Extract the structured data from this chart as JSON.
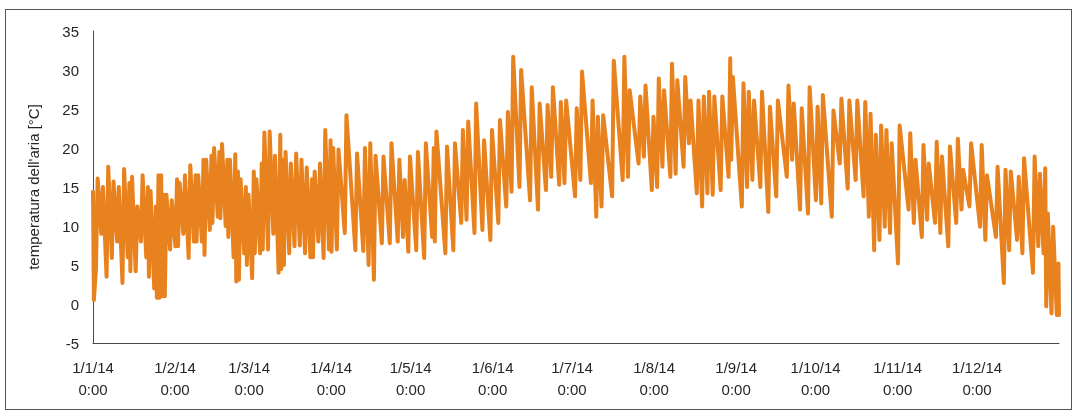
{
  "chart_data": {
    "type": "line",
    "ylabel": "temperatura dell'aria [°C]",
    "color": "#e8821e",
    "marker": "none",
    "line_style": "solid",
    "xlim": [
      "2014-01-01T00:00",
      "2014-12-31T23:00"
    ],
    "ylim": [
      -5,
      35
    ],
    "xticks": [
      {
        "value": "2014-01-01",
        "label": "1/1/14 0:00"
      },
      {
        "value": "2014-02-01",
        "label": "1/2/14 0:00"
      },
      {
        "value": "2014-03-01",
        "label": "1/3/14 0:00"
      },
      {
        "value": "2014-04-01",
        "label": "1/4/14 0:00"
      },
      {
        "value": "2014-05-01",
        "label": "1/5/14 0:00"
      },
      {
        "value": "2014-06-01",
        "label": "1/6/14 0:00"
      },
      {
        "value": "2014-07-01",
        "label": "1/7/14 0:00"
      },
      {
        "value": "2014-08-01",
        "label": "1/8/14 0:00"
      },
      {
        "value": "2014-09-01",
        "label": "1/9/14 0:00"
      },
      {
        "value": "2014-10-01",
        "label": "1/10/14 0:00"
      },
      {
        "value": "2014-11-01",
        "label": "1/11/14 0:00"
      },
      {
        "value": "2014-12-01",
        "label": "1/12/14 0:00"
      }
    ],
    "yticks": [
      -5,
      0,
      5,
      10,
      15,
      20,
      25,
      30,
      35
    ],
    "x": [
      "2014-01-01T00:00",
      "2014-01-01T08:00",
      "2014-01-02T03:00",
      "2014-01-02T18:00",
      "2014-01-04T03:00",
      "2014-01-04T18:00",
      "2014-01-06T03:00",
      "2014-01-06T18:00",
      "2014-01-08T03:00",
      "2014-01-08T18:00",
      "2014-01-10T03:00",
      "2014-01-10T18:00",
      "2014-01-12T03:00",
      "2014-01-12T18:00",
      "2014-01-14T03:00",
      "2014-01-14T18:00",
      "2014-01-15T03:00",
      "2014-01-15T18:00",
      "2014-01-17T03:00",
      "2014-01-17T18:00",
      "2014-01-19T03:00",
      "2014-01-19T18:00",
      "2014-01-21T03:00",
      "2014-01-21T18:00",
      "2014-01-22T03:00",
      "2014-01-22T18:00",
      "2014-01-24T03:00",
      "2014-01-24T18:00",
      "2014-01-25T03:00",
      "2014-01-25T18:00",
      "2014-01-26T03:00",
      "2014-01-26T18:00",
      "2014-01-27T03:00",
      "2014-01-27T18:00",
      "2014-01-28T03:00",
      "2014-01-28T18:00",
      "2014-01-30T03:00",
      "2014-01-30T18:00",
      "2014-02-01T03:00",
      "2014-02-01T18:00",
      "2014-02-02T03:00",
      "2014-02-02T18:00",
      "2014-02-04T03:00",
      "2014-02-04T18:00",
      "2014-02-06T03:00",
      "2014-02-06T18:00",
      "2014-02-08T03:00",
      "2014-02-08T18:00",
      "2014-02-09T03:00",
      "2014-02-09T18:00",
      "2014-02-11T03:00",
      "2014-02-11T18:00",
      "2014-02-12T03:00",
      "2014-02-12T18:00",
      "2014-02-14T03:00",
      "2014-02-14T18:00",
      "2014-02-15T03:00",
      "2014-02-15T18:00",
      "2014-02-17T03:00",
      "2014-02-17T18:00",
      "2014-02-18T03:00",
      "2014-02-18T18:00",
      "2014-02-20T03:00",
      "2014-02-20T18:00",
      "2014-02-21T03:00",
      "2014-02-21T18:00",
      "2014-02-23T03:00",
      "2014-02-23T18:00",
      "2014-02-24T03:00",
      "2014-02-24T18:00",
      "2014-02-25T03:00",
      "2014-02-25T18:00",
      "2014-02-27T03:00",
      "2014-02-27T18:00",
      "2014-02-28T03:00",
      "2014-02-28T18:00",
      "2014-03-02T03:00",
      "2014-03-02T18:00",
      "2014-03-03T03:00",
      "2014-03-03T18:00",
      "2014-03-05T03:00",
      "2014-03-05T18:00",
      "2014-03-06T03:00",
      "2014-03-06T18:00",
      "2014-03-08T03:00",
      "2014-03-08T18:00",
      "2014-03-10T03:00",
      "2014-03-10T18:00",
      "2014-03-12T03:00",
      "2014-03-12T18:00",
      "2014-03-13T03:00",
      "2014-03-13T18:00",
      "2014-03-14T03:00",
      "2014-03-14T18:00",
      "2014-03-16T03:00",
      "2014-03-16T18:00",
      "2014-03-18T03:00",
      "2014-03-18T18:00",
      "2014-03-20T03:00",
      "2014-03-20T18:00",
      "2014-03-22T03:00",
      "2014-03-22T18:00",
      "2014-03-24T03:00",
      "2014-03-24T18:00",
      "2014-03-25T03:00",
      "2014-03-25T18:00",
      "2014-03-27T03:00",
      "2014-03-27T18:00",
      "2014-03-29T03:00",
      "2014-03-29T18:00",
      "2014-03-31T03:00",
      "2014-03-31T18:00",
      "2014-04-01T03:00",
      "2014-04-01T18:00",
      "2014-04-03T03:00",
      "2014-04-03T18:00",
      "2014-04-06T03:00",
      "2014-04-06T18:00",
      "2014-04-10T03:00",
      "2014-04-10T18:00",
      "2014-04-13T03:00",
      "2014-04-13T18:00",
      "2014-04-15T03:00",
      "2014-04-15T18:00",
      "2014-04-17T03:00",
      "2014-04-17T18:00",
      "2014-04-20T03:00",
      "2014-04-20T18:00",
      "2014-04-23T03:00",
      "2014-04-23T18:00",
      "2014-04-26T03:00",
      "2014-04-26T18:00",
      "2014-04-28T03:00",
      "2014-04-28T18:00",
      "2014-04-30T03:00",
      "2014-04-30T18:00",
      "2014-05-03T03:00",
      "2014-05-03T18:00",
      "2014-05-06T03:00",
      "2014-05-06T18:00",
      "2014-05-09T03:00",
      "2014-05-09T18:00",
      "2014-05-10T03:00",
      "2014-05-10T18:00",
      "2014-05-14T03:00",
      "2014-05-14T18:00",
      "2014-05-17T03:00",
      "2014-05-17T18:00",
      "2014-05-20T03:00",
      "2014-05-20T18:00",
      "2014-05-22T03:00",
      "2014-05-22T18:00",
      "2014-05-25T03:00",
      "2014-05-25T18:00",
      "2014-05-28T03:00",
      "2014-05-28T18:00",
      "2014-05-31T03:00",
      "2014-05-31T18:00",
      "2014-06-03T03:00",
      "2014-06-03T18:00",
      "2014-06-06T03:00",
      "2014-06-06T18:00",
      "2014-06-08T03:00",
      "2014-06-08T18:00",
      "2014-06-11T03:00",
      "2014-06-11T18:00",
      "2014-06-15T03:00",
      "2014-06-15T18:00",
      "2014-06-18T03:00",
      "2014-06-18T18:00",
      "2014-06-21T03:00",
      "2014-06-21T18:00",
      "2014-06-23T03:00",
      "2014-06-23T18:00",
      "2014-06-26T03:00",
      "2014-06-26T18:00",
      "2014-06-28T03:00",
      "2014-06-28T18:00",
      "2014-07-02T03:00",
      "2014-07-02T18:00",
      "2014-07-04T03:00",
      "2014-07-04T18:00",
      "2014-07-08T03:00",
      "2014-07-08T18:00",
      "2014-07-10T03:00",
      "2014-07-10T18:00",
      "2014-07-12T03:00",
      "2014-07-12T18:00",
      "2014-07-16T03:00",
      "2014-07-16T18:00",
      "2014-07-20T03:00",
      "2014-07-20T18:00",
      "2014-07-22T03:00",
      "2014-07-22T18:00",
      "2014-07-26T03:00",
      "2014-07-26T18:00",
      "2014-07-28T03:00",
      "2014-07-28T18:00",
      "2014-07-31T03:00",
      "2014-07-31T18:00",
      "2014-08-02T03:00",
      "2014-08-02T18:00",
      "2014-08-04T03:00",
      "2014-08-04T18:00",
      "2014-08-07T03:00",
      "2014-08-07T18:00",
      "2014-08-09T03:00",
      "2014-08-09T18:00",
      "2014-08-12T03:00",
      "2014-08-12T18:00",
      "2014-08-14T03:00",
      "2014-08-14T18:00",
      "2014-08-17T03:00",
      "2014-08-17T18:00",
      "2014-08-19T03:00",
      "2014-08-19T18:00",
      "2014-08-21T03:00",
      "2014-08-21T18:00",
      "2014-08-23T03:00",
      "2014-08-23T18:00",
      "2014-08-26T03:00",
      "2014-08-26T18:00",
      "2014-08-29T03:00",
      "2014-08-29T18:00",
      "2014-08-30T03:00",
      "2014-08-30T18:00",
      "2014-09-03T03:00",
      "2014-09-03T18:00",
      "2014-09-05T03:00",
      "2014-09-05T18:00",
      "2014-09-07T03:00",
      "2014-09-07T18:00",
      "2014-09-10T03:00",
      "2014-09-10T18:00",
      "2014-09-13T03:00",
      "2014-09-13T18:00",
      "2014-09-16T03:00",
      "2014-09-16T18:00",
      "2014-09-20T03:00",
      "2014-09-20T18:00",
      "2014-09-22T03:00",
      "2014-09-22T18:00",
      "2014-09-25T03:00",
      "2014-09-25T18:00",
      "2014-09-28T03:00",
      "2014-09-28T18:00",
      "2014-10-01T03:00",
      "2014-10-01T18:00",
      "2014-10-03T03:00",
      "2014-10-03T18:00",
      "2014-10-07T03:00",
      "2014-10-07T18:00",
      "2014-10-10T03:00",
      "2014-10-10T18:00",
      "2014-10-13T03:00",
      "2014-10-13T18:00",
      "2014-10-16T03:00",
      "2014-10-16T18:00",
      "2014-10-19T03:00",
      "2014-10-19T18:00",
      "2014-10-21T03:00",
      "2014-10-21T18:00",
      "2014-10-23T03:00",
      "2014-10-23T18:00",
      "2014-10-25T03:00",
      "2014-10-25T18:00",
      "2014-10-27T03:00",
      "2014-10-27T18:00",
      "2014-10-29T03:00",
      "2014-10-29T18:00",
      "2014-11-01T03:00",
      "2014-11-01T18:00",
      "2014-11-05T03:00",
      "2014-11-05T18:00",
      "2014-11-07T03:00",
      "2014-11-07T18:00",
      "2014-11-10T03:00",
      "2014-11-10T18:00",
      "2014-11-12T03:00",
      "2014-11-12T18:00",
      "2014-11-15T03:00",
      "2014-11-15T18:00",
      "2014-11-17T03:00",
      "2014-11-17T18:00",
      "2014-11-20T03:00",
      "2014-11-20T18:00",
      "2014-11-23T03:00",
      "2014-11-23T18:00",
      "2014-11-25T03:00",
      "2014-11-25T18:00",
      "2014-11-28T03:00",
      "2014-11-28T18:00",
      "2014-12-02T03:00",
      "2014-12-02T18:00",
      "2014-12-04T03:00",
      "2014-12-04T18:00",
      "2014-12-08T03:00",
      "2014-12-08T18:00",
      "2014-12-11T03:00",
      "2014-12-11T18:00",
      "2014-12-13T03:00",
      "2014-12-13T18:00",
      "2014-12-16T03:00",
      "2014-12-16T18:00",
      "2014-12-18T03:00",
      "2014-12-18T18:00",
      "2014-12-22T03:00",
      "2014-12-22T18:00",
      "2014-12-24T03:00",
      "2014-12-24T18:00",
      "2014-12-26T03:00",
      "2014-12-26T18:00",
      "2014-12-27T03:00",
      "2014-12-27T18:00",
      "2014-12-29T03:00",
      "2014-12-29T18:00",
      "2014-12-31T03:00",
      "2014-12-31T18:00",
      "2014-12-31T23:00"
    ],
    "values": [
      14.4,
      0.5,
      4.6,
      16.1,
      9,
      15,
      3.5,
      17.6,
      5.9,
      15.7,
      8,
      15,
      2.7,
      17.3,
      6,
      15.5,
      4.2,
      16.3,
      4.2,
      12.5,
      8,
      16.5,
      6,
      15,
      3.5,
      14.5,
      2,
      12.5,
      0.8,
      16.5,
      0.8,
      16.5,
      1,
      14,
      1,
      14,
      7,
      13.3,
      7.4,
      16,
      7.4,
      15.5,
      9,
      16.5,
      5.9,
      17.8,
      8,
      16.5,
      8,
      16.5,
      8,
      18.5,
      6.3,
      18.5,
      9.5,
      19,
      10.4,
      20,
      11.2,
      19.5,
      11,
      20.5,
      10,
      18.5,
      8.6,
      18.5,
      6,
      19.2,
      2.9,
      17,
      3.1,
      16,
      6.5,
      15,
      5,
      14,
      3.3,
      17,
      6.5,
      16,
      6.5,
      18,
      7,
      22,
      7,
      22.1,
      9,
      19,
      4,
      21.7,
      4.5,
      18.5,
      5,
      19.5,
      6.5,
      18,
      7.4,
      19.3,
      7.5,
      18.5,
      6.5,
      17.5,
      6,
      16,
      6,
      17,
      8,
      18,
      5.9,
      22.3,
      7,
      21,
      6.7,
      20,
      7,
      19.8,
      9.1,
      24.2,
      6.9,
      19.3,
      6.8,
      20,
      5,
      20.6,
      3.1,
      19,
      7.8,
      18.9,
      7.8,
      20.6,
      8,
      18.5,
      8.6,
      15.9,
      6.7,
      18.9,
      6.9,
      19.5,
      5.9,
      20.6,
      8.6,
      20,
      8,
      22.1,
      6.5,
      20.2,
      6.9,
      20.6,
      10.4,
      22.3,
      10.8,
      23.4,
      9.1,
      25.7,
      9.5,
      21,
      8.2,
      22.3,
      10.4,
      23.6,
      12.5,
      24.6,
      14.4,
      31.7,
      15,
      30,
      13.3,
      27.8,
      12.1,
      25.7,
      14.6,
      25.5,
      16.3,
      27.8,
      15.3,
      25.9,
      15.5,
      26.1,
      13.8,
      25.1,
      15.9,
      29.8,
      15.5,
      26.1,
      11.2,
      24,
      12.5,
      24.2,
      13.8,
      31.2,
      15.9,
      31.7,
      16.3,
      27.4,
      18,
      26.6,
      18.9,
      28,
      14.6,
      24,
      15,
      28.9,
      17.6,
      27.4,
      16.3,
      30.8,
      16.7,
      28.7,
      17.6,
      29.1,
      20.6,
      26.1,
      14.2,
      26.1,
      12.5,
      26.6,
      14.2,
      27.2,
      14,
      26.6,
      14.6,
      26.6,
      16.3,
      31.5,
      18.5,
      29.1,
      12.5,
      28.3,
      15,
      27.2,
      15.9,
      26.1,
      15,
      27.2,
      11.8,
      25.3,
      13.8,
      26.1,
      16.3,
      28,
      18.5,
      25.7,
      12.1,
      25.1,
      11.6,
      27.8,
      13.3,
      25.3,
      12.9,
      26.8,
      11.2,
      24.8,
      18,
      26.3,
      14.8,
      26.1,
      15.9,
      26.1,
      13.8,
      25.9,
      11.2,
      24.4,
      6.9,
      21.7,
      8.2,
      22.9,
      9.9,
      22.3,
      9.1,
      20.6,
      5.2,
      22.9,
      12.1,
      21.9,
      10.4,
      18.5,
      8.6,
      20.4,
      10.8,
      18,
      10.4,
      20.8,
      9.1,
      18.9,
      7.4,
      20.2,
      10.4,
      21.2,
      12.1,
      17.2,
      12.5,
      20.6,
      9.9,
      20.4,
      8.2,
      16.5,
      8.6,
      17.6,
      2.7,
      17.2,
      6.9,
      17,
      8.2,
      16.3,
      6.5,
      18.7,
      4,
      18.9,
      7.4,
      16.7,
      6.5,
      17.4,
      -0.3,
      11.6,
      -1.2,
      9.9,
      -1.4,
      5.2,
      -1.4
    ]
  }
}
